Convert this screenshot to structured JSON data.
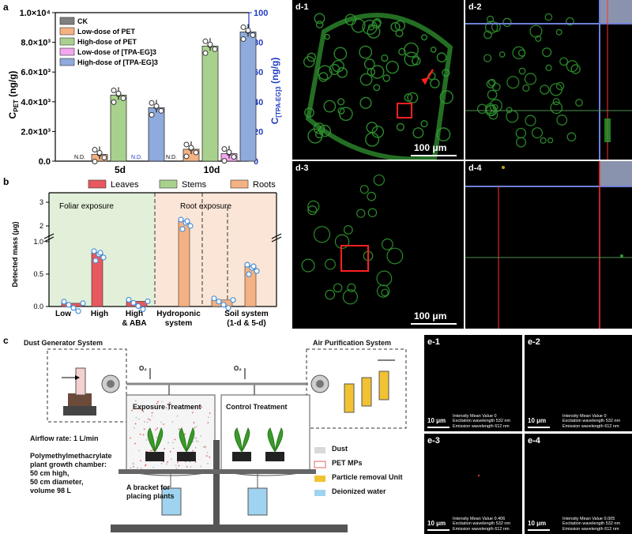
{
  "panel_a": {
    "letter": "a",
    "chart_data": {
      "type": "bar",
      "categories": [
        "5d",
        "10d"
      ],
      "left_ylabel": "C_PET (ng/g)",
      "right_ylabel": "C_[TPA-EG]3 (ng/g)",
      "left_ylim": [
        0,
        10000
      ],
      "right_ylim": [
        0,
        100
      ],
      "left_ticks": [
        "0.0",
        "2.0×10³",
        "4.0×10³",
        "6.0×10³",
        "8.0×10³",
        "1.0×10⁴"
      ],
      "right_ticks": [
        "0",
        "20",
        "40",
        "60",
        "80",
        "100"
      ],
      "series": [
        {
          "name": "CK",
          "color": "#7f7f7f",
          "axis": "left",
          "values": [
            0,
            0
          ]
        },
        {
          "name": "Low-dose of PET",
          "color": "#f4b183",
          "axis": "left",
          "values": [
            450,
            800
          ]
        },
        {
          "name": "High-dose of PET",
          "color": "#a9d18e",
          "axis": "left",
          "values": [
            4450,
            7750
          ]
        },
        {
          "name": "Low-dose of [TPA-EG]3",
          "color": "#f4a6f0",
          "axis": "right",
          "values": [
            0,
            5
          ]
        },
        {
          "name": "High-dose of [TPA-EG]3",
          "color": "#8faadc",
          "axis": "right",
          "values": [
            36,
            87
          ]
        }
      ],
      "nd_label": "N.D.",
      "grid": false,
      "legend": "top-left"
    }
  },
  "panel_b": {
    "letter": "b",
    "chart_data": {
      "type": "bar",
      "ylabel": "Detected mass (μg)",
      "yticks_lower": [
        "0.0",
        "0.5",
        "1.0"
      ],
      "yticks_upper": [
        "2",
        "3"
      ],
      "legend": [
        "Leaves",
        "Stems",
        "Roots"
      ],
      "legend_colors": [
        "#e8585e",
        "#a9d18e",
        "#f4b183"
      ],
      "region_labels": [
        "Foliar exposure",
        "Root exposure"
      ],
      "categories": [
        "Low",
        "High",
        "High & ABA",
        "Hydroponic system",
        "Soil system (1-d & 5-d)"
      ],
      "bars": [
        {
          "category": "Low",
          "series": "Leaves",
          "value": 0.05
        },
        {
          "category": "High",
          "series": "Leaves",
          "value": 0.83
        },
        {
          "category": "High & ABA",
          "series": "Leaves",
          "value": 0.08
        },
        {
          "category": "Hydroponic system",
          "series": "Roots",
          "value": 2.2
        },
        {
          "category": "Soil system (1-d & 5-d)",
          "series": "Roots",
          "value": 0.1
        },
        {
          "category": "Soil system (1-d & 5-d)",
          "series": "Roots",
          "value": 0.62
        }
      ]
    }
  },
  "panel_c": {
    "letter": "c",
    "dust_generator_title": "Dust Generator System",
    "air_purification_title": "Air Purification System",
    "o2_label": "O₂",
    "exposure_label": "Exposure Treatment",
    "control_label": "Control Treatment",
    "airflow": "Airflow rate: 1 L/min",
    "chamber_desc": [
      "Polymethylmethacrylate",
      "plant growth chamber:",
      "50 cm high,",
      "50 cm diameter,",
      "volume 98 L"
    ],
    "bracket_desc": [
      "A bracket for",
      "placing plants"
    ],
    "legend": [
      "Dust",
      "PET MPs",
      "Particle removal Unit",
      "Deionized water"
    ],
    "legend_colors": [
      "#d9d9d9",
      "#e06666",
      "#f1c232",
      "#9fd3f0"
    ]
  },
  "panel_d": [
    {
      "letter": "d-1",
      "scale": "100 μm"
    },
    {
      "letter": "d-2"
    },
    {
      "letter": "d-3",
      "scale": "100 μm"
    },
    {
      "letter": "d-4"
    }
  ],
  "panel_e": [
    {
      "letter": "e-1",
      "scale": "10 μm",
      "info": [
        "Intensity Mean Value 0",
        "Excitation wavelength 532 nm",
        "Emission wavelength 612 nm"
      ]
    },
    {
      "letter": "e-2",
      "scale": "10 μm",
      "info": [
        "Intensity Mean Value 0",
        "Excitation wavelength 532 nm",
        "Emission wavelength 612 nm"
      ]
    },
    {
      "letter": "e-3",
      "scale": "10 μm",
      "info": [
        "Intensity Mean Value 0.406",
        "Excitation wavelength 532 nm",
        "Emission wavelength 612 nm"
      ]
    },
    {
      "letter": "e-4",
      "scale": "10 μm",
      "info": [
        "Intensity Mean Value 0.005",
        "Excitation wavelength 532 nm",
        "Emission wavelength 612 nm"
      ]
    }
  ]
}
